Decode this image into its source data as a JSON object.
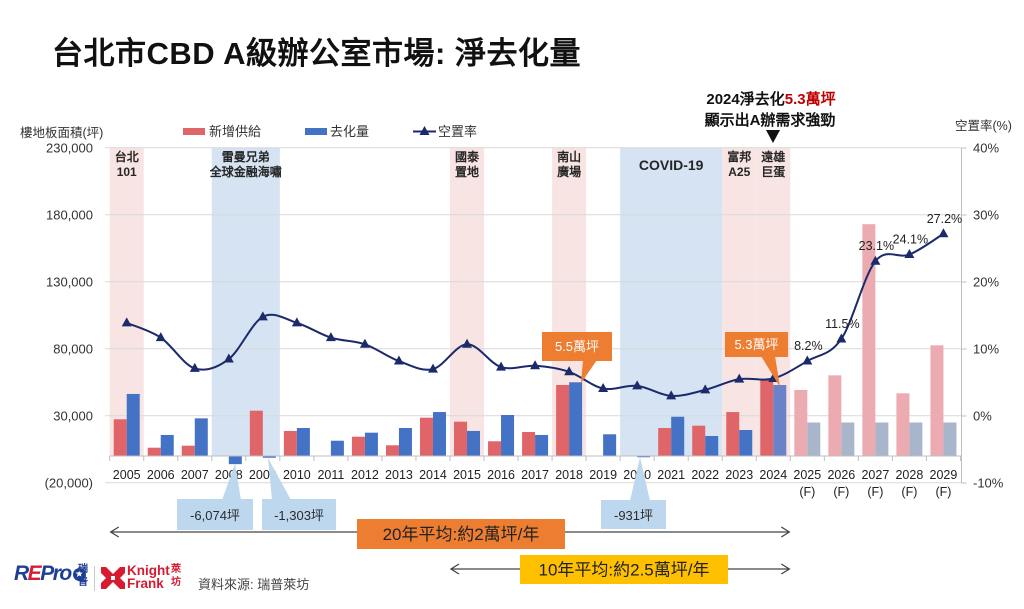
{
  "page": {
    "title": "台北市CBD A級辦公室市場: 淨去化量",
    "source": "資料來源: 瑞普萊坊"
  },
  "logos": {
    "repro": {
      "r": "R",
      "e": "E",
      "pro": "Pro",
      "star": "★",
      "cn_top": "瑞",
      "cn_bottom": "普"
    },
    "knight_frank": {
      "line1": "Knight",
      "line2": "Frank",
      "cn_top": "萊",
      "cn_bottom": "坊"
    }
  },
  "colors": {
    "new_supply": "#E06569",
    "net_absorption": "#4472C4",
    "net_absorption_highlight": "#6A82C8",
    "new_supply_forecast": "#EBABB0",
    "net_absorption_forecast": "#A8B5CB",
    "vacancy_line": "#1B2A6B",
    "band_pink": "#F8E5E3",
    "band_blue": "#D5E3F2",
    "callout_orange": "#ED7D31",
    "callout_blue": "#BDD7EE",
    "avg20_box": "#ED7D31",
    "avg10_box": "#FFC000",
    "highlight_red": "#C00000",
    "negative_axis_label": "#C0504D",
    "grid": "#D9D9D9",
    "axis": "#BFBFBF"
  },
  "chart_data": {
    "type": "bar",
    "combo": "bar+line",
    "title": "台北市CBD A級辦公室市場: 淨去化量",
    "ylabel": "樓地板面積(坪)",
    "y2label": "空置率(%)",
    "ylim": [
      -20000,
      230000
    ],
    "y2lim": [
      -10,
      40
    ],
    "grid": true,
    "legend_position": "top",
    "legend": [
      "新增供給",
      "去化量",
      "空置率"
    ],
    "yticks": [
      {
        "value": 230000,
        "label": "230,000"
      },
      {
        "value": 180000,
        "label": "180,000"
      },
      {
        "value": 130000,
        "label": "130,000"
      },
      {
        "value": 80000,
        "label": "80,000"
      },
      {
        "value": 30000,
        "label": "30,000"
      },
      {
        "value": -20000,
        "label": "(20,000)"
      }
    ],
    "y2ticks": [
      {
        "value": 40,
        "label": "40%"
      },
      {
        "value": 30,
        "label": "30%"
      },
      {
        "value": 20,
        "label": "20%"
      },
      {
        "value": 10,
        "label": "10%"
      },
      {
        "value": 0,
        "label": "0%"
      },
      {
        "value": -10,
        "label": "-10%"
      }
    ],
    "categories": [
      "2005",
      "2006",
      "2007",
      "2008",
      "2009",
      "2010",
      "2011",
      "2012",
      "2013",
      "2014",
      "2015",
      "2016",
      "2017",
      "2018",
      "2019",
      "2020",
      "2021",
      "2022",
      "2023",
      "2024",
      "2025",
      "2026",
      "2027",
      "2028",
      "2029"
    ],
    "category_sublabels": [
      "",
      "",
      "",
      "",
      "",
      "",
      "",
      "",
      "",
      "",
      "",
      "",
      "",
      "",
      "",
      "",
      "",
      "",
      "",
      "",
      "(F)",
      "(F)",
      "(F)",
      "(F)",
      "(F)"
    ],
    "forecast_start": "2025",
    "series": [
      {
        "name": "新增供給",
        "type": "bar",
        "axis": "left",
        "values": [
          27400,
          6200,
          7700,
          0,
          33800,
          18700,
          0,
          14400,
          8000,
          28600,
          25600,
          11000,
          17900,
          53000,
          0,
          0,
          20900,
          22600,
          32800,
          56700,
          49300,
          60200,
          173000,
          46800,
          82600
        ]
      },
      {
        "name": "去化量",
        "type": "bar",
        "axis": "left",
        "highlight_category": "2024",
        "values": [
          46300,
          15700,
          28100,
          -6074,
          -1303,
          20900,
          11400,
          17400,
          20900,
          32800,
          18700,
          30600,
          15700,
          55000,
          16200,
          -931,
          29300,
          14900,
          19400,
          53000,
          25000,
          25000,
          25000,
          25000,
          25000
        ]
      },
      {
        "name": "空置率",
        "type": "line",
        "axis": "right",
        "marker": "triangle",
        "smooth": true,
        "unit": "%",
        "values": [
          13.9,
          11.7,
          7.1,
          8.5,
          14.8,
          13.9,
          11.7,
          10.7,
          8.2,
          7.0,
          10.7,
          7.3,
          7.5,
          6.6,
          4.1,
          4.5,
          3.0,
          3.9,
          5.5,
          5.6,
          8.2,
          11.5,
          23.1,
          24.1,
          27.2
        ]
      }
    ],
    "vacancy_labels": [
      {
        "category": "2025",
        "text": "8.2%"
      },
      {
        "category": "2026",
        "text": "11.5%"
      },
      {
        "category": "2027",
        "text": "23.1%"
      },
      {
        "category": "2028",
        "text": "24.1%"
      },
      {
        "category": "2029",
        "text": "27.2%"
      }
    ],
    "event_bands": [
      {
        "lines": [
          "台北",
          "101"
        ],
        "start": "2005",
        "end": "2005",
        "tone": "pink"
      },
      {
        "lines": [
          "雷曼兄弟",
          "全球金融海嘯"
        ],
        "start": "2008",
        "end": "2009",
        "tone": "blue"
      },
      {
        "lines": [
          "國泰",
          "置地"
        ],
        "start": "2015",
        "end": "2015",
        "tone": "pink"
      },
      {
        "lines": [
          "南山",
          "廣場"
        ],
        "start": "2018",
        "end": "2018",
        "tone": "pink"
      },
      {
        "lines": [
          "COVID-19"
        ],
        "start": "2020",
        "end": "2022",
        "tone": "blue"
      },
      {
        "lines": [
          "富邦",
          "A25"
        ],
        "start": "2023",
        "end": "2023",
        "tone": "pink"
      },
      {
        "lines": [
          "遠雄",
          "巨蛋"
        ],
        "start": "2024",
        "end": "2024",
        "tone": "pink"
      }
    ],
    "highlight_callouts": [
      {
        "category": "2018",
        "text": "5.5萬坪"
      },
      {
        "category": "2024",
        "text": "5.3萬坪"
      }
    ],
    "negative_callouts": [
      {
        "category": "2008",
        "text": "-6,074坪"
      },
      {
        "category": "2009",
        "text": "-1,303坪"
      },
      {
        "category": "2020",
        "text": "-931坪"
      }
    ],
    "headline": {
      "prefix": "2024淨去化",
      "highlight": "5.3萬坪",
      "line2": "顯示出A辦需求強勁"
    },
    "averages": [
      {
        "label": "20年平均:約2萬坪/年",
        "from": "2005",
        "to": "2024"
      },
      {
        "label": "10年平均:約2.5萬坪/年",
        "from": "2015",
        "to": "2024"
      }
    ]
  }
}
